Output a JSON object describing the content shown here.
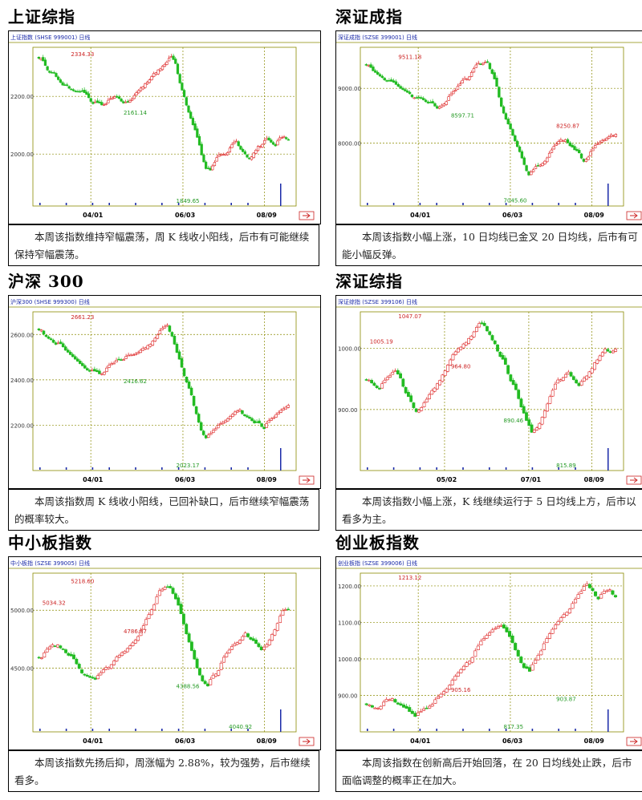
{
  "colors": {
    "up": "#dd2222",
    "down": "#22bb22",
    "grid": "#8a8a00",
    "volume": "#1a2aa8",
    "label_up": "#cc2222",
    "label_down": "#229922",
    "scale": "#000000"
  },
  "panels": [
    {
      "title": "上证综指",
      "header": "上证指数 (SHSE 999001) 日线",
      "caption": "本周该指数维持窄幅震荡，周 K 线收小阳线，后市有可能继续保持窄幅震荡。",
      "dates": [
        "04/01",
        "06/03",
        "08/09"
      ],
      "chart_data": {
        "type": "candlestick",
        "y_ticks": [
          2000,
          2200
        ],
        "y_tick_labels": [
          "2000.00",
          "2200.00"
        ],
        "ylim": [
          1820,
          2370
        ],
        "x_tick_labels": [
          "04/01",
          "06/03",
          "08/09"
        ],
        "annotations": [
          {
            "label": "2334.33",
            "value": 2334.33,
            "kind": "high"
          },
          {
            "label": "2161.14",
            "value": 2161.14,
            "kind": "low"
          },
          {
            "label": "1849.65",
            "value": 1849.65,
            "kind": "low"
          }
        ],
        "series": [
          {
            "values": [
              2340,
              2300,
              2290,
              2280,
              2260,
              2240,
              2235,
              2230,
              2220,
              2215,
              2205,
              2190,
              2180,
              2170,
              2165,
              2175,
              2185,
              2200,
              2190,
              2180,
              2175,
              2190,
              2210,
              2230,
              2250,
              2260,
              2280,
              2300,
              2310,
              2320,
              2330,
              2310,
              2250,
              2200,
              2150,
              2100,
              2050,
              1990,
              1950,
              1940,
              1970,
              1990,
              2000,
              2010,
              2030,
              2040,
              2020,
              2000,
              1990,
              2010,
              2030,
              2040,
              2050,
              2040,
              2030,
              2050,
              2060,
              2055
            ]
          }
        ]
      }
    },
    {
      "title": "深证成指",
      "header": "深证成指 (SZSE 399001) 日线",
      "caption": "本周该指数小幅上涨，10 日均线已金叉 20 日均线，后市有可能小幅反弹。",
      "dates": [
        "04/01",
        "06/03",
        "08/09"
      ],
      "chart_data": {
        "type": "candlestick",
        "y_ticks": [
          8000,
          9000
        ],
        "y_tick_labels": [
          "8000.00",
          "9000.00"
        ],
        "ylim": [
          6850,
          9750
        ],
        "x_tick_labels": [
          "04/01",
          "06/03",
          "08/09"
        ],
        "annotations": [
          {
            "label": "9511.18",
            "value": 9511.18,
            "kind": "high"
          },
          {
            "label": "8597.71",
            "value": 8597.71,
            "kind": "low"
          },
          {
            "label": "7045.60",
            "value": 7045.6,
            "kind": "low"
          },
          {
            "label": "8250.87",
            "value": 8250.87,
            "kind": "high"
          }
        ],
        "series": [
          {
            "values": [
              9450,
              9300,
              9250,
              9200,
              9150,
              9100,
              9050,
              9000,
              8950,
              8900,
              8870,
              8820,
              8780,
              8740,
              8700,
              8650,
              8700,
              8780,
              8850,
              8950,
              9050,
              9150,
              9250,
              9350,
              9420,
              9480,
              9450,
              9300,
              9000,
              8700,
              8450,
              8250,
              8050,
              7850,
              7600,
              7450,
              7500,
              7550,
              7650,
              7750,
              7850,
              7950,
              8050,
              8100,
              7950,
              7850,
              7800,
              7700,
              7750,
              7850,
              7950,
              8050,
              8100,
              8150,
              8200
            ]
          }
        ]
      }
    },
    {
      "title": "沪深 300",
      "header": "沪深300 (SHSE 999300) 日线",
      "caption": "本周该指数周 K 线收小阳线，已回补缺口，后市继续窄幅震荡的概率较大。",
      "dates": [
        "04/01",
        "06/03",
        "08/09"
      ],
      "chart_data": {
        "type": "candlestick",
        "y_ticks": [
          2200,
          2400,
          2600
        ],
        "y_tick_labels": [
          "2200.00",
          "2400.00",
          "2600.00"
        ],
        "ylim": [
          2000,
          2700
        ],
        "x_tick_labels": [
          "04/01",
          "06/03",
          "08/09"
        ],
        "annotations": [
          {
            "label": "2661.23",
            "value": 2661.23,
            "kind": "high"
          },
          {
            "label": "2416.62",
            "value": 2416.62,
            "kind": "low"
          },
          {
            "label": "2023.17",
            "value": 2023.17,
            "kind": "low"
          }
        ],
        "series": [
          {
            "values": [
              2630,
              2600,
              2580,
              2560,
              2550,
              2530,
              2510,
              2490,
              2470,
              2450,
              2440,
              2430,
              2420,
              2440,
              2460,
              2470,
              2480,
              2490,
              2500,
              2510,
              2520,
              2540,
              2560,
              2580,
              2600,
              2620,
              2640,
              2600,
              2520,
              2450,
              2400,
              2330,
              2260,
              2180,
              2150,
              2160,
              2180,
              2200,
              2220,
              2240,
              2260,
              2270,
              2250,
              2230,
              2210,
              2200,
              2190,
              2210,
              2230,
              2250,
              2270,
              2290
            ]
          }
        ]
      }
    },
    {
      "title": "深证综指",
      "header": "深证综指 (SZSE 399106) 日线",
      "caption": "本周该指数小幅上涨，K 线继续运行于 5 日均线上方，后市以看多为主。",
      "dates": [
        "05/02",
        "07/01",
        "08/09"
      ],
      "chart_data": {
        "type": "candlestick",
        "y_ticks": [
          900,
          1000
        ],
        "y_tick_labels": [
          "900.00",
          "1000.00"
        ],
        "ylim": [
          800,
          1060
        ],
        "x_tick_labels": [
          "05/02",
          "07/01",
          "08/09"
        ],
        "annotations": [
          {
            "label": "1047.07",
            "value": 1047.07,
            "kind": "high"
          },
          {
            "label": "964.80",
            "value": 964.8,
            "kind": "high"
          },
          {
            "label": "890.46",
            "value": 890.46,
            "kind": "low"
          },
          {
            "label": "815.89",
            "value": 815.89,
            "kind": "low"
          },
          {
            "label": "1005.19",
            "value": 1005.19,
            "kind": "high"
          }
        ],
        "series": [
          {
            "values": [
              950,
              940,
              935,
              945,
              955,
              960,
              950,
              930,
              910,
              900,
              905,
              915,
              930,
              945,
              960,
              975,
              990,
              1000,
              1010,
              1020,
              1030,
              1040,
              1035,
              1025,
              1010,
              990,
              970,
              950,
              930,
              905,
              880,
              860,
              870,
              890,
              910,
              930,
              945,
              955,
              960,
              950,
              940,
              950,
              965,
              980,
              990,
              1000,
              995,
              1000
            ]
          }
        ]
      }
    },
    {
      "title": "中小板指数",
      "header": "中小板指 (SZSE 399005) 日线",
      "caption": "本周该指数先扬后抑，周涨幅为 2.88%，较为强势，后市继续看多。",
      "dates": [
        "04/01",
        "06/03",
        "08/09"
      ],
      "chart_data": {
        "type": "candlestick",
        "y_ticks": [
          4500,
          5000
        ],
        "y_tick_labels": [
          "4500.00",
          "5000.00"
        ],
        "ylim": [
          3950,
          5320
        ],
        "x_tick_labels": [
          "04/01",
          "06/03",
          "08/09"
        ],
        "annotations": [
          {
            "label": "5218.60",
            "value": 5218.6,
            "kind": "high"
          },
          {
            "label": "4786.87",
            "value": 4786.87,
            "kind": "high"
          },
          {
            "label": "4388.56",
            "value": 4388.56,
            "kind": "low"
          },
          {
            "label": "4040.92",
            "value": 4040.92,
            "kind": "low"
          },
          {
            "label": "5034.32",
            "value": 5034.32,
            "kind": "high"
          }
        ],
        "series": [
          {
            "values": [
              4600,
              4650,
              4700,
              4720,
              4680,
              4620,
              4560,
              4500,
              4460,
              4420,
              4400,
              4450,
              4500,
              4550,
              4600,
              4640,
              4680,
              4720,
              4780,
              4850,
              4950,
              5050,
              5150,
              5200,
              5180,
              5100,
              4950,
              4800,
              4650,
              4500,
              4400,
              4350,
              4420,
              4500,
              4580,
              4650,
              4700,
              4750,
              4800,
              4760,
              4700,
              4660,
              4700,
              4800,
              4900,
              4980,
              5000
            ]
          }
        ]
      }
    },
    {
      "title": "创业板指数",
      "header": "创业板指 (SZSE 399006) 日线",
      "caption": "本周该指数在创新高后开始回落，在 20 日均线处止跌，后市面临调整的概率正在加大。",
      "dates": [
        "04/01",
        "06/03",
        "08/09"
      ],
      "chart_data": {
        "type": "candlestick",
        "y_ticks": [
          900,
          1000,
          1100,
          1200
        ],
        "y_tick_labels": [
          "900.00",
          "1000.00",
          "1100.00",
          "1200.00"
        ],
        "ylim": [
          800,
          1235
        ],
        "x_tick_labels": [
          "04/01",
          "06/03",
          "08/09"
        ],
        "annotations": [
          {
            "label": "1213.12",
            "value": 1213.12,
            "kind": "high"
          },
          {
            "label": "905.16",
            "value": 905.16,
            "kind": "high"
          },
          {
            "label": "817.35",
            "value": 817.35,
            "kind": "low"
          },
          {
            "label": "903.87",
            "value": 903.87,
            "kind": "low"
          }
        ],
        "series": [
          {
            "values": [
              880,
              870,
              875,
              885,
              895,
              880,
              865,
              850,
              840,
              850,
              860,
              875,
              890,
              910,
              930,
              950,
              970,
              990,
              1010,
              1030,
              1050,
              1070,
              1080,
              1090,
              1070,
              1040,
              1010,
              980,
              960,
              990,
              1020,
              1050,
              1080,
              1100,
              1120,
              1140,
              1160,
              1180,
              1200,
              1190,
              1170,
              1180,
              1190,
              1175
            ]
          }
        ]
      }
    }
  ]
}
